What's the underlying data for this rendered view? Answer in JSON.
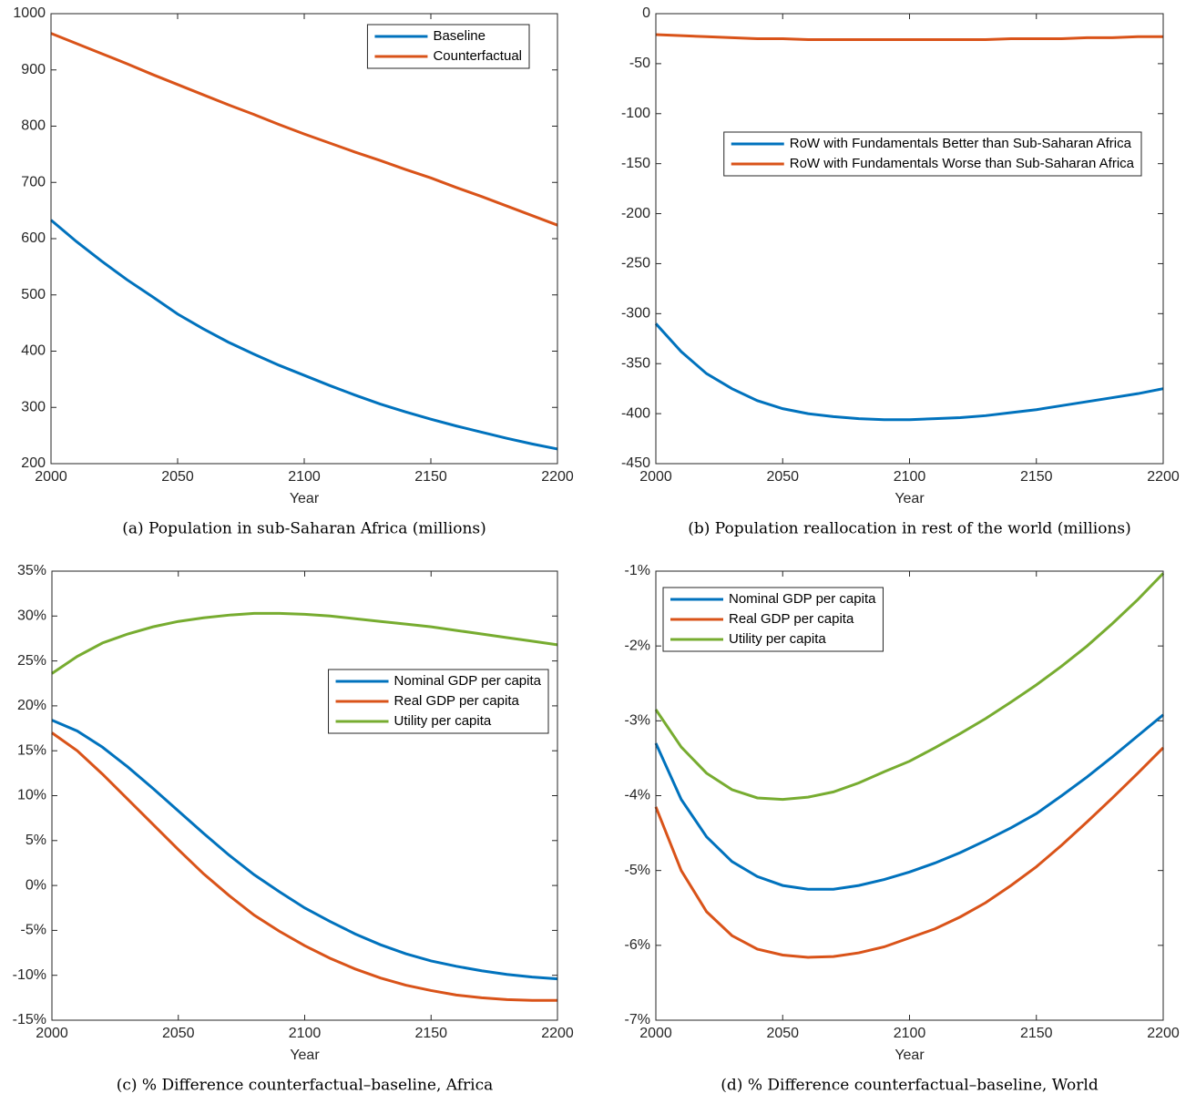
{
  "chart_data": [
    {
      "type": "line",
      "caption": "(a) Population in sub-Saharan Africa (millions)",
      "xlabel": "Year",
      "x": [
        2000,
        2010,
        2020,
        2030,
        2040,
        2050,
        2060,
        2070,
        2080,
        2090,
        2100,
        2110,
        2120,
        2130,
        2140,
        2150,
        2160,
        2170,
        2180,
        2190,
        2200
      ],
      "xlim": [
        2000,
        2200
      ],
      "xticks": [
        2000,
        2050,
        2100,
        2150,
        2200
      ],
      "ylim": [
        200,
        1000
      ],
      "yticks": [
        200,
        300,
        400,
        500,
        600,
        700,
        800,
        900,
        1000
      ],
      "legend": "northeast",
      "series": [
        {
          "name": "Baseline",
          "color": "#0072BD",
          "values": [
            633,
            595,
            560,
            527,
            497,
            466,
            440,
            416,
            395,
            375,
            357,
            339,
            322,
            306,
            292,
            279,
            267,
            256,
            245,
            235,
            226
          ]
        },
        {
          "name": "Counterfactual",
          "color": "#D95319",
          "values": [
            965,
            947,
            929,
            911,
            892,
            874,
            856,
            838,
            821,
            803,
            786,
            770,
            754,
            739,
            723,
            708,
            691,
            675,
            658,
            641,
            624
          ]
        }
      ]
    },
    {
      "type": "line",
      "caption": "(b) Population reallocation in rest of the world (millions)",
      "xlabel": "Year",
      "x": [
        2000,
        2010,
        2020,
        2030,
        2040,
        2050,
        2060,
        2070,
        2080,
        2090,
        2100,
        2110,
        2120,
        2130,
        2140,
        2150,
        2160,
        2170,
        2180,
        2190,
        2200
      ],
      "xlim": [
        2000,
        2200
      ],
      "xticks": [
        2000,
        2050,
        2100,
        2150,
        2200
      ],
      "ylim": [
        -450,
        0
      ],
      "yticks": [
        -450,
        -400,
        -350,
        -300,
        -250,
        -200,
        -150,
        -100,
        -50,
        0
      ],
      "legend": "northeast",
      "series": [
        {
          "name": "RoW with Fundamentals Better than Sub-Saharan Africa",
          "color": "#0072BD",
          "values": [
            -310,
            -338,
            -360,
            -375,
            -387,
            -395,
            -400,
            -403,
            -405,
            -406,
            -406,
            -405,
            -404,
            -402,
            -399,
            -396,
            -392,
            -388,
            -384,
            -380,
            -375
          ]
        },
        {
          "name": "RoW with Fundamentals Worse than Sub-Saharan Africa",
          "color": "#D95319",
          "values": [
            -21,
            -22,
            -23,
            -24,
            -25,
            -25,
            -26,
            -26,
            -26,
            -26,
            -26,
            -26,
            -26,
            -26,
            -25,
            -25,
            -25,
            -24,
            -24,
            -23,
            -23
          ]
        }
      ]
    },
    {
      "type": "line",
      "caption": "(c) % Difference counterfactual–baseline, Africa",
      "xlabel": "Year",
      "x": [
        2000,
        2010,
        2020,
        2030,
        2040,
        2050,
        2060,
        2070,
        2080,
        2090,
        2100,
        2110,
        2120,
        2130,
        2140,
        2150,
        2160,
        2170,
        2180,
        2190,
        2200
      ],
      "xlim": [
        2000,
        2200
      ],
      "xticks": [
        2000,
        2050,
        2100,
        2150,
        2200
      ],
      "ylim": [
        -15,
        35
      ],
      "yticks": [
        {
          "value": -15,
          "label": "-15%"
        },
        {
          "value": -10,
          "label": "-10%"
        },
        {
          "value": -5,
          "label": "-5%"
        },
        {
          "value": 0,
          "label": "0%"
        },
        {
          "value": 5,
          "label": "5%"
        },
        {
          "value": 10,
          "label": "10%"
        },
        {
          "value": 15,
          "label": "15%"
        },
        {
          "value": 20,
          "label": "20%"
        },
        {
          "value": 25,
          "label": "25%"
        },
        {
          "value": 30,
          "label": "30%"
        },
        {
          "value": 35,
          "label": "35%"
        }
      ],
      "legend": "east",
      "series": [
        {
          "name": "Nominal GDP per capita",
          "color": "#0072BD",
          "values": [
            18.4,
            17.2,
            15.4,
            13.2,
            10.8,
            8.3,
            5.8,
            3.4,
            1.2,
            -0.7,
            -2.5,
            -4.0,
            -5.4,
            -6.6,
            -7.6,
            -8.4,
            -9.0,
            -9.5,
            -9.9,
            -10.2,
            -10.4
          ]
        },
        {
          "name": "Real GDP per capita",
          "color": "#D95319",
          "values": [
            17.0,
            15.0,
            12.4,
            9.6,
            6.8,
            4.0,
            1.3,
            -1.1,
            -3.3,
            -5.1,
            -6.7,
            -8.1,
            -9.3,
            -10.3,
            -11.1,
            -11.7,
            -12.2,
            -12.5,
            -12.7,
            -12.8,
            -12.8
          ]
        },
        {
          "name": "Utility per capita",
          "color": "#77AC30",
          "values": [
            23.6,
            25.5,
            27.0,
            28.0,
            28.8,
            29.4,
            29.8,
            30.1,
            30.3,
            30.3,
            30.2,
            30.0,
            29.7,
            29.4,
            29.1,
            28.8,
            28.4,
            28.0,
            27.6,
            27.2,
            26.8
          ]
        }
      ]
    },
    {
      "type": "line",
      "caption": "(d) % Difference counterfactual–baseline, World",
      "xlabel": "Year",
      "x": [
        2000,
        2010,
        2020,
        2030,
        2040,
        2050,
        2060,
        2070,
        2080,
        2090,
        2100,
        2110,
        2120,
        2130,
        2140,
        2150,
        2160,
        2170,
        2180,
        2190,
        2200
      ],
      "xlim": [
        2000,
        2200
      ],
      "xticks": [
        2000,
        2050,
        2100,
        2150,
        2200
      ],
      "ylim": [
        -7,
        -1
      ],
      "yticks": [
        {
          "value": -7,
          "label": "-7%"
        },
        {
          "value": -6,
          "label": "-6%"
        },
        {
          "value": -5,
          "label": "-5%"
        },
        {
          "value": -4,
          "label": "-4%"
        },
        {
          "value": -3,
          "label": "-3%"
        },
        {
          "value": -2,
          "label": "-2%"
        },
        {
          "value": -1,
          "label": "-1%"
        }
      ],
      "legend": "northwest",
      "series": [
        {
          "name": "Nominal GDP per capita",
          "color": "#0072BD",
          "values": [
            -3.3,
            -4.05,
            -4.55,
            -4.88,
            -5.08,
            -5.2,
            -5.25,
            -5.25,
            -5.2,
            -5.12,
            -5.02,
            -4.9,
            -4.76,
            -4.6,
            -4.43,
            -4.24,
            -4.0,
            -3.75,
            -3.48,
            -3.2,
            -2.92
          ]
        },
        {
          "name": "Real GDP per capita",
          "color": "#D95319",
          "values": [
            -4.15,
            -5.0,
            -5.55,
            -5.87,
            -6.05,
            -6.13,
            -6.16,
            -6.15,
            -6.1,
            -6.02,
            -5.9,
            -5.78,
            -5.62,
            -5.43,
            -5.2,
            -4.95,
            -4.66,
            -4.35,
            -4.03,
            -3.7,
            -3.36
          ]
        },
        {
          "name": "Utility per capita",
          "color": "#77AC30",
          "values": [
            -2.85,
            -3.35,
            -3.7,
            -3.92,
            -4.03,
            -4.05,
            -4.02,
            -3.95,
            -3.83,
            -3.68,
            -3.54,
            -3.36,
            -3.17,
            -2.97,
            -2.75,
            -2.52,
            -2.27,
            -2.0,
            -1.7,
            -1.38,
            -1.03
          ]
        }
      ]
    }
  ]
}
